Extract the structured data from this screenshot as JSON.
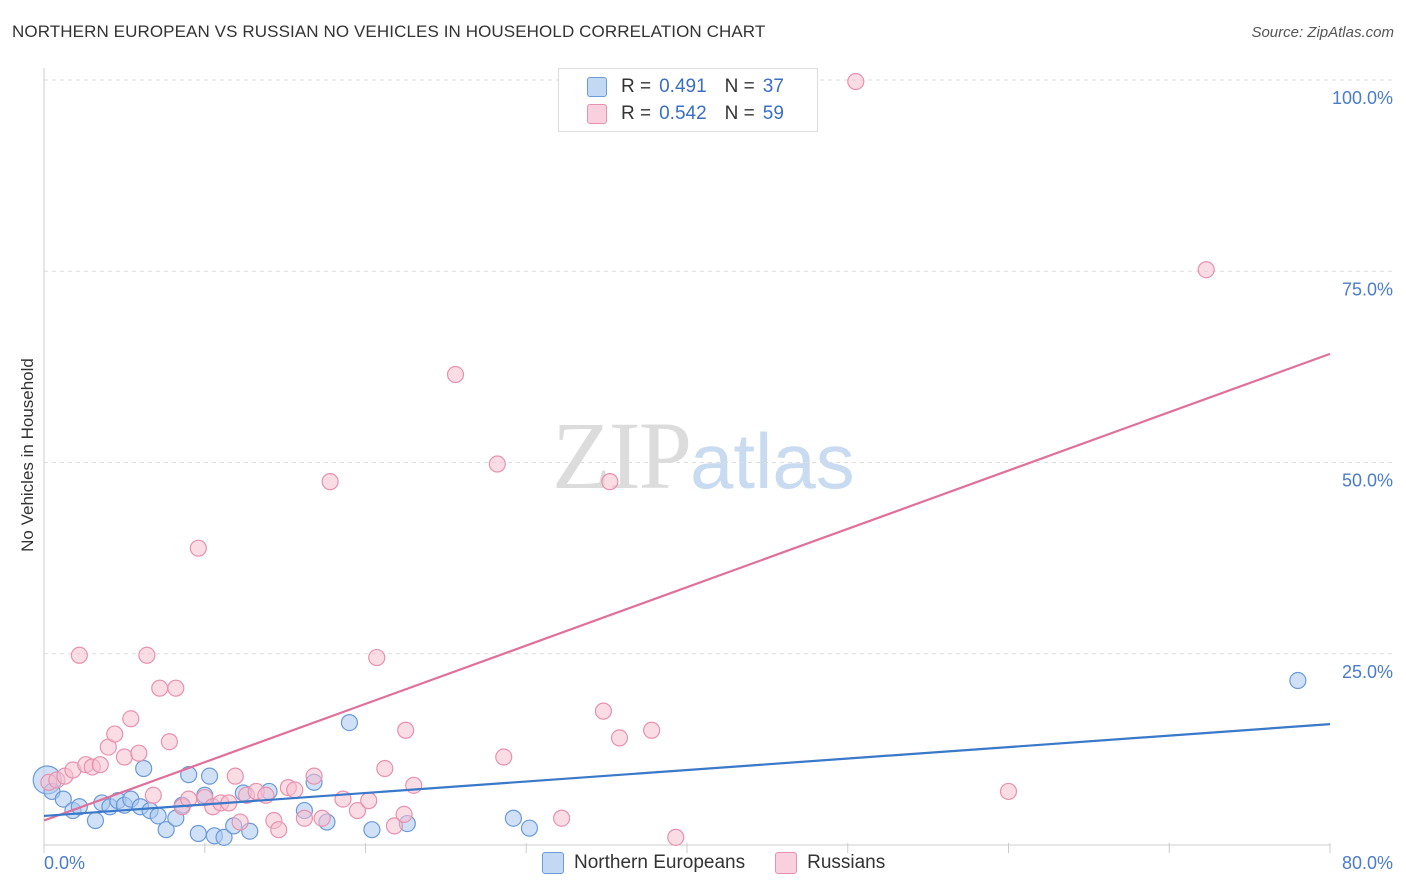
{
  "header": {
    "title": "NORTHERN EUROPEAN VS RUSSIAN NO VEHICLES IN HOUSEHOLD CORRELATION CHART",
    "source": "Source: ZipAtlas.com"
  },
  "watermark": {
    "zip": "ZIP",
    "atlas": "atlas"
  },
  "legend": {
    "rows": [
      {
        "r_label": "R =",
        "r_value": "0.491",
        "n_label": "N =",
        "n_value": "37"
      },
      {
        "r_label": "R =",
        "r_value": "0.542",
        "n_label": "N =",
        "n_value": "59"
      }
    ]
  },
  "bottom_legend": {
    "series1": "Northern Europeans",
    "series2": "Russians"
  },
  "colors": {
    "northern_fill": "#a9c8f0",
    "northern_stroke": "#6b9ad8",
    "northern_line": "#3a78c9",
    "russian_fill": "#f6bfd0",
    "russian_stroke": "#e891ae",
    "russian_line": "#e0709a",
    "tick": "#4a7cc9"
  },
  "chart_data": {
    "type": "scatter",
    "title": "NORTHERN EUROPEAN VS RUSSIAN NO VEHICLES IN HOUSEHOLD CORRELATION CHART",
    "xlabel": "",
    "ylabel": "No Vehicles in Household",
    "xlim": [
      0,
      80
    ],
    "ylim": [
      0,
      100
    ],
    "x_tick_labels": [
      "0.0%",
      "80.0%"
    ],
    "y_ticks": [
      25,
      50,
      75,
      100
    ],
    "y_tick_labels": [
      "25.0%",
      "50.0%",
      "75.0%",
      "100.0%"
    ],
    "series": [
      {
        "name": "Northern Europeans",
        "R": 0.491,
        "N": 37,
        "trend": {
          "x": [
            0,
            80
          ],
          "y": [
            3.8,
            15.8
          ]
        },
        "points": [
          [
            0.2,
            8.5
          ],
          [
            0.5,
            7.0
          ],
          [
            1.2,
            6.0
          ],
          [
            1.8,
            4.5
          ],
          [
            2.2,
            5.0
          ],
          [
            3.2,
            3.2
          ],
          [
            3.6,
            5.5
          ],
          [
            4.1,
            5.0
          ],
          [
            4.6,
            5.8
          ],
          [
            5.0,
            5.2
          ],
          [
            5.4,
            6.0
          ],
          [
            6.0,
            5.0
          ],
          [
            6.2,
            10.0
          ],
          [
            6.6,
            4.5
          ],
          [
            7.1,
            3.8
          ],
          [
            7.6,
            2.0
          ],
          [
            8.2,
            3.5
          ],
          [
            8.6,
            5.2
          ],
          [
            9.0,
            9.2
          ],
          [
            9.6,
            1.5
          ],
          [
            10.0,
            6.5
          ],
          [
            10.3,
            9.0
          ],
          [
            10.6,
            1.2
          ],
          [
            11.2,
            1.0
          ],
          [
            11.8,
            2.5
          ],
          [
            12.4,
            6.8
          ],
          [
            12.8,
            1.8
          ],
          [
            14.0,
            7.0
          ],
          [
            16.2,
            4.5
          ],
          [
            16.8,
            8.2
          ],
          [
            17.6,
            3.0
          ],
          [
            19.0,
            16.0
          ],
          [
            20.4,
            2.0
          ],
          [
            22.6,
            2.8
          ],
          [
            29.2,
            3.5
          ],
          [
            30.2,
            2.2
          ],
          [
            78.0,
            21.5
          ]
        ]
      },
      {
        "name": "Russians",
        "R": 0.542,
        "N": 59,
        "trend": {
          "x": [
            0,
            80
          ],
          "y": [
            3.2,
            64.2
          ]
        },
        "points": [
          [
            0.3,
            8.2
          ],
          [
            0.8,
            8.5
          ],
          [
            1.3,
            9.0
          ],
          [
            1.8,
            9.8
          ],
          [
            2.2,
            24.8
          ],
          [
            2.6,
            10.5
          ],
          [
            3.0,
            10.2
          ],
          [
            3.5,
            10.5
          ],
          [
            4.0,
            12.8
          ],
          [
            4.4,
            14.5
          ],
          [
            5.0,
            11.5
          ],
          [
            5.4,
            16.5
          ],
          [
            5.9,
            12.0
          ],
          [
            6.4,
            24.8
          ],
          [
            6.8,
            6.5
          ],
          [
            7.2,
            20.5
          ],
          [
            7.8,
            13.5
          ],
          [
            8.2,
            20.5
          ],
          [
            8.6,
            5.0
          ],
          [
            9.0,
            6.0
          ],
          [
            9.6,
            38.8
          ],
          [
            10.0,
            6.2
          ],
          [
            10.5,
            5.0
          ],
          [
            11.0,
            5.5
          ],
          [
            11.5,
            5.5
          ],
          [
            11.9,
            9.0
          ],
          [
            12.2,
            3.0
          ],
          [
            12.6,
            6.5
          ],
          [
            13.2,
            7.0
          ],
          [
            13.8,
            6.5
          ],
          [
            14.3,
            3.2
          ],
          [
            14.6,
            2.0
          ],
          [
            15.2,
            7.5
          ],
          [
            15.6,
            7.2
          ],
          [
            16.2,
            3.5
          ],
          [
            16.8,
            9.0
          ],
          [
            17.3,
            3.5
          ],
          [
            17.8,
            47.5
          ],
          [
            18.6,
            6.0
          ],
          [
            19.5,
            4.5
          ],
          [
            20.2,
            5.8
          ],
          [
            20.7,
            24.5
          ],
          [
            21.2,
            10.0
          ],
          [
            21.8,
            2.5
          ],
          [
            22.4,
            4.0
          ],
          [
            22.5,
            15.0
          ],
          [
            23.0,
            7.8
          ],
          [
            25.6,
            61.5
          ],
          [
            28.2,
            49.8
          ],
          [
            28.6,
            11.5
          ],
          [
            32.2,
            3.5
          ],
          [
            34.8,
            17.5
          ],
          [
            35.2,
            47.5
          ],
          [
            35.8,
            14.0
          ],
          [
            37.8,
            15.0
          ],
          [
            39.3,
            1.0
          ],
          [
            50.5,
            99.8
          ],
          [
            72.3,
            75.2
          ],
          [
            60.0,
            7.0
          ]
        ]
      }
    ]
  }
}
